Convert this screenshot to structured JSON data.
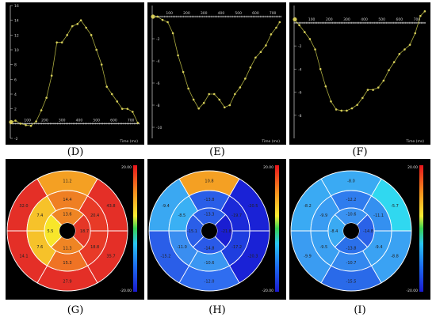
{
  "captions": [
    "(D)",
    "(E)",
    "(F)",
    "(G)",
    "(H)",
    "(I)"
  ],
  "chart_data": [
    {
      "type": "line",
      "panel": "D",
      "xlabel": "Time (ms)",
      "xlim": [
        0,
        750
      ],
      "ylim": [
        -2,
        16
      ],
      "xticks": [
        100,
        200,
        300,
        400,
        500,
        600,
        700
      ],
      "yticks": [
        -2,
        2,
        4,
        6,
        8,
        10,
        12,
        14,
        16
      ],
      "ytick_labels": [
        "-2",
        "2",
        "4",
        "6",
        "8",
        "10",
        "12",
        "14",
        "16"
      ],
      "line_color": "#c8c84a",
      "x": [
        0,
        30,
        60,
        90,
        120,
        150,
        180,
        210,
        240,
        270,
        300,
        330,
        360,
        390,
        410,
        440,
        470,
        500,
        530,
        560,
        590,
        620,
        650,
        680,
        710,
        740
      ],
      "y": [
        0.2,
        0.4,
        0.0,
        -0.2,
        -0.3,
        0.3,
        1.8,
        3.5,
        6.5,
        11,
        11,
        12,
        13.2,
        13.5,
        14,
        13,
        12,
        10,
        8,
        5,
        4,
        3,
        2,
        2,
        1.6,
        0.1
      ]
    },
    {
      "type": "line",
      "panel": "E",
      "xlabel": "Time (ms)",
      "xlim": [
        0,
        750
      ],
      "ylim": [
        -11,
        1
      ],
      "xticks": [
        100,
        200,
        300,
        400,
        500,
        600,
        700
      ],
      "yticks": [
        -10,
        -8,
        -6,
        -4,
        -2
      ],
      "ytick_labels": [
        "-10",
        "-8",
        "-6",
        "-4",
        "-2"
      ],
      "line_color": "#c8c84a",
      "x": [
        0,
        30,
        60,
        90,
        120,
        150,
        180,
        210,
        240,
        270,
        300,
        330,
        360,
        390,
        420,
        450,
        480,
        510,
        540,
        570,
        600,
        630,
        660,
        690,
        720,
        740
      ],
      "y": [
        0,
        0,
        -0.3,
        -0.5,
        -1.5,
        -3.5,
        -5,
        -6.5,
        -7.5,
        -8.3,
        -7.8,
        -7,
        -7,
        -7.5,
        -8.2,
        -8,
        -7,
        -6.4,
        -5.6,
        -4.6,
        -3.7,
        -3.2,
        -2.6,
        -1.6,
        -1,
        -0.5
      ]
    },
    {
      "type": "line",
      "panel": "F",
      "xlabel": "Time (ms)",
      "xlim": [
        0,
        750
      ],
      "ylim": [
        -10,
        1.5
      ],
      "xticks": [
        100,
        200,
        300,
        400,
        500,
        600,
        700
      ],
      "yticks": [
        -8,
        -6,
        -4,
        -2,
        2
      ],
      "ytick_labels": [
        "-8",
        "-6",
        "-4",
        "-2",
        "2"
      ],
      "line_color": "#c8c84a",
      "x": [
        0,
        30,
        60,
        90,
        120,
        150,
        180,
        210,
        240,
        270,
        300,
        330,
        360,
        390,
        420,
        450,
        480,
        510,
        540,
        570,
        600,
        630,
        660,
        690,
        720,
        745
      ],
      "y": [
        0.3,
        -0.2,
        -0.8,
        -1.4,
        -2.3,
        -4,
        -5.5,
        -6.8,
        -7.5,
        -7.6,
        -7.6,
        -7.4,
        -7.1,
        -6.5,
        -5.8,
        -5.8,
        -5.6,
        -5,
        -4.1,
        -3.4,
        -2.7,
        -2.3,
        -1.9,
        -0.9,
        0.6,
        1
      ]
    },
    {
      "type": "bullseye",
      "panel": "G",
      "scale_max": "20.00",
      "scale_min": "-20.00",
      "segments": {
        "basal": [
          11.2,
          43.8,
          35.7,
          27.9,
          14.1,
          32.0
        ],
        "mid": [
          14.4,
          20.4,
          18.8,
          15.3,
          7.6,
          7.4
        ],
        "apical": [
          13.6,
          18.7,
          11.3,
          5.5
        ]
      },
      "segment_colors": {
        "basal": [
          "#f4a023",
          "#e42f27",
          "#e42f27",
          "#e42f27",
          "#e42f27",
          "#e42f27"
        ],
        "mid": [
          "#ef7f23",
          "#e83a27",
          "#e83a27",
          "#ef7324",
          "#f6c22a",
          "#f6c22a"
        ],
        "apical": [
          "#ef8524",
          "#e53727",
          "#ef8524",
          "#f8e62a"
        ]
      }
    },
    {
      "type": "bullseye",
      "panel": "H",
      "scale_max": "20.00",
      "scale_min": "-20.00",
      "segments": {
        "basal": [
          10.8,
          -20.5,
          -20.3,
          -12.0,
          -15.2,
          -9.4
        ],
        "mid": [
          -13.8,
          -19.7,
          -17.2,
          -10.6,
          -11.0,
          -8.5
        ],
        "apical": [
          -13.3,
          -21.8,
          -14.8,
          -15.1
        ]
      },
      "segment_colors": {
        "basal": [
          "#f4a023",
          "#1a22d6",
          "#1a22d6",
          "#2f6df0",
          "#2a5ee8",
          "#3aa8f2"
        ],
        "mid": [
          "#2a5ee8",
          "#1b2ad8",
          "#1f3edf",
          "#3a96f2",
          "#3a8ef0",
          "#3ab0f4"
        ],
        "apical": [
          "#2a5ee8",
          "#1a1ed2",
          "#2a5ae8",
          "#2a5ee8"
        ]
      }
    },
    {
      "type": "bullseye",
      "panel": "I",
      "scale_max": "20.00",
      "scale_min": "-20.00",
      "segments": {
        "basal": [
          -8.0,
          -5.7,
          -8.8,
          -15.5,
          -9.9,
          -8.2
        ],
        "mid": [
          -12.2,
          -11.1,
          -9.4,
          -10.7,
          -9.5,
          -9.9
        ],
        "apical": [
          -10.6,
          -14.8,
          -13.8,
          -8.4
        ]
      },
      "segment_colors": {
        "basal": [
          "#3aaaf3",
          "#30d8f0",
          "#3aa2f3",
          "#2a6ae9",
          "#3a9cf2",
          "#3aaaf3"
        ],
        "mid": [
          "#2f7cee",
          "#3490f0",
          "#3aa2f3",
          "#3388ef",
          "#3aa0f2",
          "#3a9cf2"
        ],
        "apical": [
          "#3a92f1",
          "#2a62e8",
          "#2b70ea",
          "#3aaaf3"
        ]
      }
    }
  ]
}
